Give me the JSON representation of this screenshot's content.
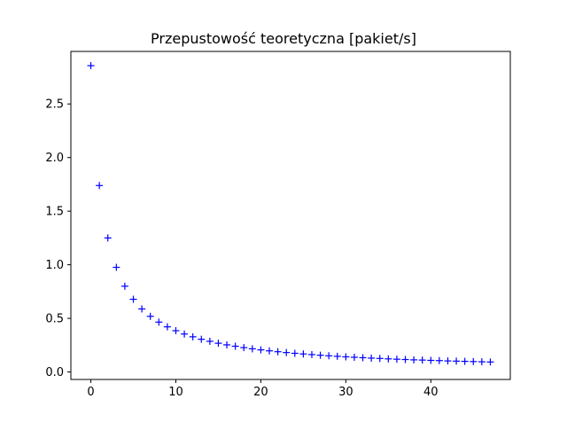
{
  "chart_data": {
    "type": "scatter",
    "title": "Przepustowość teoretyczna [pakiet/s]",
    "xlabel": "",
    "ylabel": "",
    "marker": "+",
    "color": "#0000ff",
    "grid": false,
    "legend": false,
    "xlim": [
      -2.35,
      49.35
    ],
    "ylim": [
      -0.07,
      2.99
    ],
    "xticks": [
      0,
      10,
      20,
      30,
      40
    ],
    "xtick_labels": [
      "0",
      "10",
      "20",
      "30",
      "40"
    ],
    "yticks": [
      0.0,
      0.5,
      1.0,
      1.5,
      2.0,
      2.5
    ],
    "ytick_labels": [
      "0.0",
      "0.5",
      "1.0",
      "1.5",
      "2.0",
      "2.5"
    ],
    "series": [
      {
        "x": [
          0,
          1,
          2,
          3,
          4,
          5,
          6,
          7,
          8,
          9,
          10,
          11,
          12,
          13,
          14,
          15,
          16,
          17,
          18,
          19,
          20,
          21,
          22,
          23,
          24,
          25,
          26,
          27,
          28,
          29,
          30,
          31,
          32,
          33,
          34,
          35,
          36,
          37,
          38,
          39,
          40,
          41,
          42,
          43,
          44,
          45,
          46,
          47
        ],
        "y": [
          2.857,
          1.739,
          1.25,
          0.976,
          0.8,
          0.678,
          0.588,
          0.519,
          0.465,
          0.421,
          0.385,
          0.354,
          0.328,
          0.305,
          0.286,
          0.268,
          0.253,
          0.24,
          0.227,
          0.216,
          0.206,
          0.197,
          0.189,
          0.181,
          0.174,
          0.168,
          0.162,
          0.156,
          0.151,
          0.146,
          0.141,
          0.137,
          0.133,
          0.129,
          0.126,
          0.122,
          0.119,
          0.116,
          0.113,
          0.111,
          0.108,
          0.106,
          0.103,
          0.101,
          0.099,
          0.097,
          0.095,
          0.093
        ]
      }
    ]
  }
}
